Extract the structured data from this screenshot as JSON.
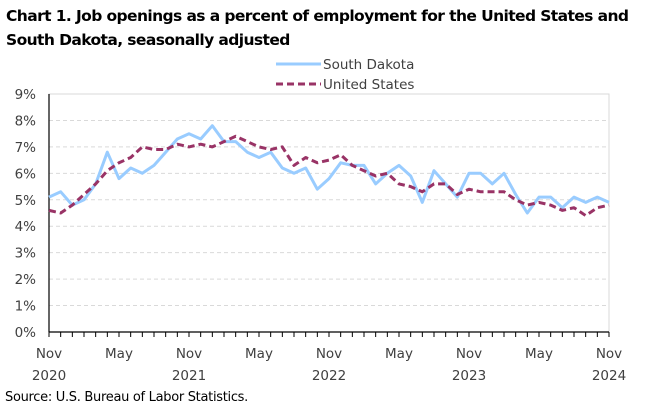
{
  "chart_data": {
    "type": "line",
    "title": "Chart 1. Job openings as a percent of employment for the United States and South Dakota, seasonally adjusted",
    "xlabel": "",
    "ylabel": "",
    "ylim": [
      0,
      9
    ],
    "y_ticks": [
      "0%",
      "1%",
      "2%",
      "3%",
      "4%",
      "5%",
      "6%",
      "7%",
      "8%",
      "9%"
    ],
    "x_tick_labels": [
      {
        "month": "Nov",
        "year": "2020",
        "index": 0
      },
      {
        "month": "May",
        "year": "",
        "index": 6
      },
      {
        "month": "Nov",
        "year": "2021",
        "index": 12
      },
      {
        "month": "May",
        "year": "",
        "index": 18
      },
      {
        "month": "Nov",
        "year": "2022",
        "index": 24
      },
      {
        "month": "May",
        "year": "",
        "index": 30
      },
      {
        "month": "Nov",
        "year": "2023",
        "index": 36
      },
      {
        "month": "May",
        "year": "",
        "index": 42
      },
      {
        "month": "Nov",
        "year": "2024",
        "index": 48
      }
    ],
    "x": [
      "Nov 2020",
      "Dec 2020",
      "Jan 2021",
      "Feb 2021",
      "Mar 2021",
      "Apr 2021",
      "May 2021",
      "Jun 2021",
      "Jul 2021",
      "Aug 2021",
      "Sep 2021",
      "Oct 2021",
      "Nov 2021",
      "Dec 2021",
      "Jan 2022",
      "Feb 2022",
      "Mar 2022",
      "Apr 2022",
      "May 2022",
      "Jun 2022",
      "Jul 2022",
      "Aug 2022",
      "Sep 2022",
      "Oct 2022",
      "Nov 2022",
      "Dec 2022",
      "Jan 2023",
      "Feb 2023",
      "Mar 2023",
      "Apr 2023",
      "May 2023",
      "Jun 2023",
      "Jul 2023",
      "Aug 2023",
      "Sep 2023",
      "Oct 2023",
      "Nov 2023",
      "Dec 2023",
      "Jan 2024",
      "Feb 2024",
      "Mar 2024",
      "Apr 2024",
      "May 2024",
      "Jun 2024",
      "Jul 2024",
      "Aug 2024",
      "Sep 2024",
      "Oct 2024",
      "Nov 2024"
    ],
    "grid": "horizontal-dashed",
    "legend_position": "top-center",
    "series": [
      {
        "name": "South Dakota",
        "color": "#99ccff",
        "style": "solid",
        "values": [
          5.1,
          5.3,
          4.8,
          5.0,
          5.6,
          6.8,
          5.8,
          6.2,
          6.0,
          6.3,
          6.8,
          7.3,
          7.5,
          7.3,
          7.8,
          7.2,
          7.2,
          6.8,
          6.6,
          6.8,
          6.2,
          6.0,
          6.2,
          5.4,
          5.8,
          6.4,
          6.3,
          6.3,
          5.6,
          6.0,
          6.3,
          5.9,
          4.9,
          6.1,
          5.6,
          5.1,
          6.0,
          6.0,
          5.6,
          6.0,
          5.2,
          4.5,
          5.1,
          5.1,
          4.7,
          5.1,
          4.9,
          5.1,
          4.9
        ]
      },
      {
        "name": "United States",
        "color": "#993366",
        "style": "dashed",
        "values": [
          4.6,
          4.5,
          4.8,
          5.2,
          5.6,
          6.1,
          6.4,
          6.6,
          7.0,
          6.9,
          6.9,
          7.1,
          7.0,
          7.1,
          7.0,
          7.2,
          7.4,
          7.2,
          7.0,
          6.9,
          7.0,
          6.3,
          6.6,
          6.4,
          6.5,
          6.7,
          6.3,
          6.1,
          5.9,
          6.0,
          5.6,
          5.5,
          5.3,
          5.6,
          5.6,
          5.2,
          5.4,
          5.3,
          5.3,
          5.3,
          5.0,
          4.8,
          4.9,
          4.8,
          4.6,
          4.7,
          4.4,
          4.7,
          4.8
        ]
      }
    ]
  },
  "source": "Source: U.S. Bureau of Labor Statistics."
}
